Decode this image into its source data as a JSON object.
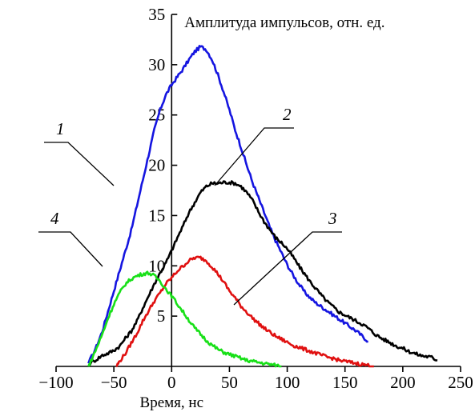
{
  "chart_data": {
    "type": "line",
    "ylabel": "Амплитуда импульсов, отн. ед.",
    "xlabel": "Время, нс",
    "xlim": [
      -100,
      250
    ],
    "ylim": [
      0,
      35
    ],
    "xticks": [
      -100,
      -50,
      0,
      50,
      100,
      150,
      200,
      250
    ],
    "yticks": [
      5,
      10,
      15,
      20,
      25,
      30,
      35
    ],
    "grid": false,
    "colors": {
      "1": "#1515e0",
      "2": "#000000",
      "3": "#e01010",
      "4": "#18e018"
    },
    "series": [
      {
        "name": "1",
        "color": "#1515e0",
        "x": [
          -72,
          -65,
          -60,
          -55,
          -50,
          -45,
          -40,
          -35,
          -30,
          -25,
          -20,
          -15,
          -10,
          -5,
          0,
          5,
          10,
          15,
          20,
          25,
          30,
          35,
          40,
          45,
          50,
          55,
          60,
          65,
          70,
          75,
          80,
          85,
          90,
          95,
          100,
          105,
          110,
          115,
          120,
          125,
          130,
          135,
          140,
          145,
          150,
          155,
          160,
          165,
          170
        ],
        "y": [
          0.3,
          2.0,
          3.5,
          5.5,
          7.5,
          9.5,
          11.5,
          13.5,
          16.0,
          18.5,
          21.0,
          23.5,
          25.5,
          27.0,
          28.0,
          28.8,
          29.6,
          30.5,
          31.3,
          31.8,
          31.5,
          30.5,
          29.0,
          27.3,
          25.5,
          23.5,
          21.8,
          20.0,
          18.3,
          16.8,
          15.3,
          13.8,
          12.5,
          11.3,
          10.1,
          9.1,
          8.2,
          7.4,
          6.8,
          6.3,
          5.9,
          5.5,
          5.1,
          4.7,
          4.3,
          3.9,
          3.5,
          3.0,
          2.5
        ]
      },
      {
        "name": "2",
        "color": "#000000",
        "x": [
          -72,
          -65,
          -60,
          -55,
          -50,
          -45,
          -40,
          -35,
          -30,
          -25,
          -20,
          -15,
          -10,
          -5,
          0,
          5,
          10,
          15,
          20,
          25,
          30,
          35,
          40,
          45,
          50,
          55,
          60,
          65,
          70,
          75,
          80,
          85,
          90,
          95,
          100,
          105,
          110,
          115,
          120,
          125,
          130,
          135,
          140,
          145,
          150,
          155,
          160,
          165,
          170,
          175,
          180,
          185,
          190,
          195,
          200,
          205,
          210,
          215,
          220,
          225,
          230
        ],
        "y": [
          0.2,
          0.7,
          1.1,
          1.3,
          1.6,
          2.0,
          2.8,
          3.5,
          4.5,
          5.8,
          7.0,
          8.2,
          9.3,
          10.3,
          11.5,
          12.8,
          14.0,
          15.3,
          16.3,
          17.3,
          17.9,
          18.2,
          18.2,
          18.3,
          18.3,
          18.2,
          17.9,
          17.3,
          16.5,
          15.4,
          14.4,
          13.6,
          12.8,
          12.3,
          11.7,
          10.9,
          10.0,
          9.2,
          8.4,
          7.7,
          7.0,
          6.4,
          5.9,
          5.4,
          5.1,
          4.8,
          4.5,
          4.2,
          3.8,
          3.3,
          2.9,
          2.6,
          2.3,
          2.0,
          1.8,
          1.5,
          1.3,
          1.1,
          1.0,
          0.9,
          0.6
        ]
      },
      {
        "name": "3",
        "color": "#e01010",
        "x": [
          -48,
          -45,
          -40,
          -35,
          -30,
          -25,
          -20,
          -15,
          -10,
          -5,
          0,
          5,
          10,
          15,
          20,
          25,
          30,
          35,
          40,
          45,
          50,
          55,
          60,
          65,
          70,
          75,
          80,
          85,
          90,
          95,
          100,
          105,
          110,
          115,
          120,
          125,
          130,
          135,
          140,
          145,
          150,
          155,
          160,
          165,
          170,
          175
        ],
        "y": [
          0.0,
          0.5,
          1.3,
          2.3,
          3.3,
          4.5,
          5.5,
          6.5,
          7.3,
          8.2,
          8.8,
          9.5,
          10.0,
          10.5,
          10.8,
          10.8,
          10.5,
          9.9,
          9.2,
          8.4,
          7.5,
          6.8,
          6.0,
          5.4,
          4.8,
          4.3,
          3.8,
          3.4,
          3.0,
          2.7,
          2.4,
          2.1,
          1.9,
          1.7,
          1.5,
          1.3,
          1.1,
          0.9,
          0.8,
          0.6,
          0.5,
          0.4,
          0.3,
          0.2,
          0.1,
          0.0
        ]
      },
      {
        "name": "4",
        "color": "#18e018",
        "x": [
          -72,
          -70,
          -65,
          -60,
          -55,
          -50,
          -45,
          -40,
          -35,
          -30,
          -25,
          -20,
          -15,
          -10,
          -5,
          0,
          5,
          10,
          15,
          20,
          25,
          30,
          35,
          40,
          45,
          50,
          55,
          60,
          65,
          70,
          75,
          80,
          85,
          90,
          95
        ],
        "y": [
          0.0,
          0.5,
          1.8,
          3.2,
          4.8,
          6.2,
          7.3,
          8.2,
          8.7,
          9.0,
          9.2,
          9.3,
          9.0,
          8.5,
          7.7,
          7.0,
          6.2,
          5.4,
          4.6,
          3.8,
          3.2,
          2.6,
          2.1,
          1.7,
          1.4,
          1.2,
          1.0,
          0.8,
          0.6,
          0.5,
          0.4,
          0.3,
          0.2,
          0.1,
          0.0
        ]
      }
    ]
  }
}
